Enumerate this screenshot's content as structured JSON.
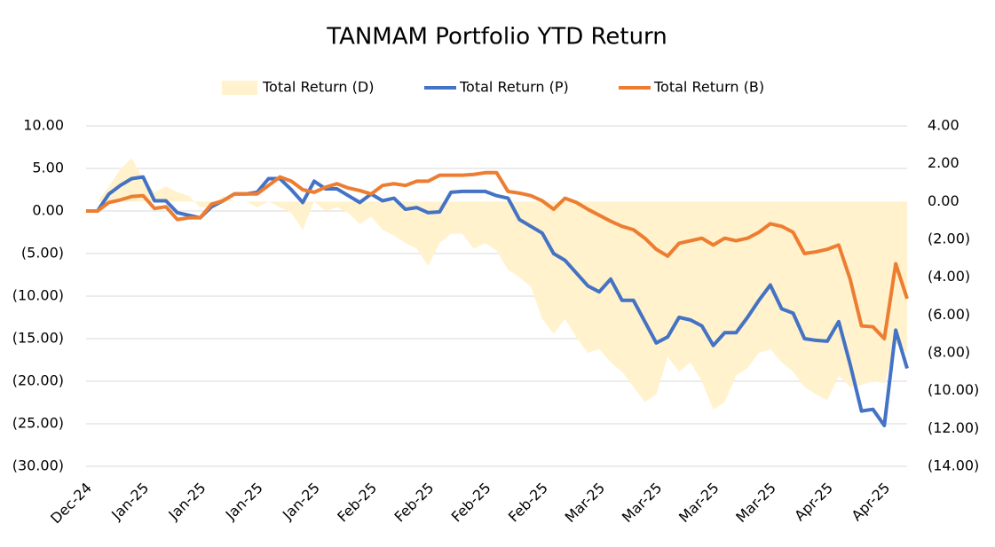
{
  "chart_data": {
    "type": "line",
    "title": "TANMAM Portfolio YTD Return",
    "categories": [
      "Dec-24",
      null,
      null,
      null,
      null,
      "Jan-25",
      null,
      null,
      null,
      null,
      "Jan-25",
      null,
      null,
      null,
      null,
      "Jan-25",
      null,
      null,
      null,
      null,
      "Jan-25",
      null,
      null,
      null,
      null,
      "Feb-25",
      null,
      null,
      null,
      null,
      "Feb-25",
      null,
      null,
      null,
      null,
      "Feb-25",
      null,
      null,
      null,
      null,
      "Feb-25",
      null,
      null,
      null,
      null,
      "Mar-25",
      null,
      null,
      null,
      null,
      "Mar-25",
      null,
      null,
      null,
      null,
      "Mar-25",
      null,
      null,
      null,
      null,
      "Mar-25",
      null,
      null,
      null,
      null,
      "Apr-25",
      null,
      null,
      null,
      null,
      "Apr-25",
      null,
      null
    ],
    "series": [
      {
        "name": "Total Return (D)",
        "kind": "area",
        "axis": "y2",
        "color": "#fff2cc",
        "values": [
          0,
          0,
          0.8,
          1.7,
          2.3,
          1.2,
          0.5,
          0.8,
          0.5,
          0.3,
          -0.3,
          -0.3,
          0.3,
          0,
          0,
          -0.3,
          0,
          -0.3,
          -0.6,
          -1.5,
          0,
          -0.5,
          -0.3,
          -0.6,
          -1.2,
          -0.8,
          -1.5,
          -1.8,
          -2.2,
          -2.5,
          -3.4,
          -2.2,
          -1.7,
          -1.7,
          -2.5,
          -2.2,
          -2.6,
          -3.6,
          -4,
          -4.5,
          -6.2,
          -7,
          -6.2,
          -7.2,
          -8,
          -7.8,
          -8.5,
          -9,
          -9.8,
          -10.6,
          -10.2,
          -8.2,
          -9,
          -8.5,
          -9.5,
          -11,
          -10.6,
          -9.2,
          -8.8,
          -8,
          -7.8,
          -8.5,
          -9,
          -9.8,
          -10.2,
          -10.5,
          -9.2,
          -9.8,
          -9.7,
          -9.5,
          -9.6,
          -7.5,
          -8
        ]
      },
      {
        "name": "Total Return (P)",
        "kind": "line",
        "color": "#4472c4",
        "values": [
          0,
          0,
          2,
          3,
          3.8,
          4,
          1.2,
          1.2,
          -0.2,
          -0.5,
          -0.8,
          0.5,
          1.2,
          2,
          2,
          2.2,
          3.8,
          3.8,
          2.5,
          1,
          3.5,
          2.6,
          2.6,
          1.8,
          1,
          2,
          1.2,
          1.5,
          0.2,
          0.4,
          -0.2,
          -0.1,
          2.2,
          2.3,
          2.3,
          2.3,
          1.8,
          1.5,
          -1,
          -1.8,
          -2.6,
          -5,
          -5.8,
          -7.3,
          -8.8,
          -9.5,
          -8,
          -10.5,
          -10.5,
          -13,
          -15.5,
          -14.8,
          -12.5,
          -12.8,
          -13.5,
          -15.8,
          -14.3,
          -14.3,
          -12.5,
          -10.5,
          -8.7,
          -11.5,
          -12,
          -15,
          -15.2,
          -15.3,
          -13,
          -18,
          -23.5,
          -23.3,
          -25.2,
          -14,
          -18.5
        ]
      },
      {
        "name": "Total Return (B)",
        "kind": "line",
        "color": "#ed7d31",
        "values": [
          0,
          0,
          1,
          1.3,
          1.7,
          1.8,
          0.3,
          0.5,
          -1,
          -0.8,
          -0.8,
          0.8,
          1.2,
          2,
          2,
          2,
          3,
          4,
          3.5,
          2.5,
          2.2,
          2.8,
          3.2,
          2.7,
          2.4,
          2,
          3,
          3.2,
          3,
          3.5,
          3.5,
          4.2,
          4.2,
          4.2,
          4.3,
          4.5,
          4.5,
          2.3,
          2.1,
          1.8,
          1.2,
          0.2,
          1.5,
          1,
          0.2,
          -0.5,
          -1.2,
          -1.8,
          -2.2,
          -3.2,
          -4.5,
          -5.3,
          -3.8,
          -3.5,
          -3.2,
          -4,
          -3.2,
          -3.5,
          -3.2,
          -2.5,
          -1.5,
          -1.8,
          -2.5,
          -5,
          -4.8,
          -4.5,
          -4,
          -8,
          -13.5,
          -13.6,
          -15,
          -6.2,
          -10.3
        ]
      }
    ],
    "ylim": [
      -30,
      10
    ],
    "yticks": [
      {
        "value": 10,
        "label": "10.00"
      },
      {
        "value": 5,
        "label": "5.00"
      },
      {
        "value": 0,
        "label": "0.00"
      },
      {
        "value": -5,
        "label": "(5.00)"
      },
      {
        "value": -10,
        "label": "(10.00)"
      },
      {
        "value": -15,
        "label": "(15.00)"
      },
      {
        "value": -20,
        "label": "(20.00)"
      },
      {
        "value": -25,
        "label": "(25.00)"
      },
      {
        "value": -30,
        "label": "(30.00)"
      }
    ],
    "y2lim": [
      -14,
      4
    ],
    "y2ticks": [
      {
        "value": 4,
        "label": "4.00"
      },
      {
        "value": 2,
        "label": "2.00"
      },
      {
        "value": 0,
        "label": "0.00"
      },
      {
        "value": -2,
        "label": "(2.00)"
      },
      {
        "value": -4,
        "label": "(4.00)"
      },
      {
        "value": -6,
        "label": "(6.00)"
      },
      {
        "value": -8,
        "label": "(8.00)"
      },
      {
        "value": -10,
        "label": "(10.00)"
      },
      {
        "value": -12,
        "label": "(12.00)"
      },
      {
        "value": -14,
        "label": "(14.00)"
      }
    ],
    "grid": true,
    "legend": "top",
    "negative_label_color": "#ff0000"
  }
}
